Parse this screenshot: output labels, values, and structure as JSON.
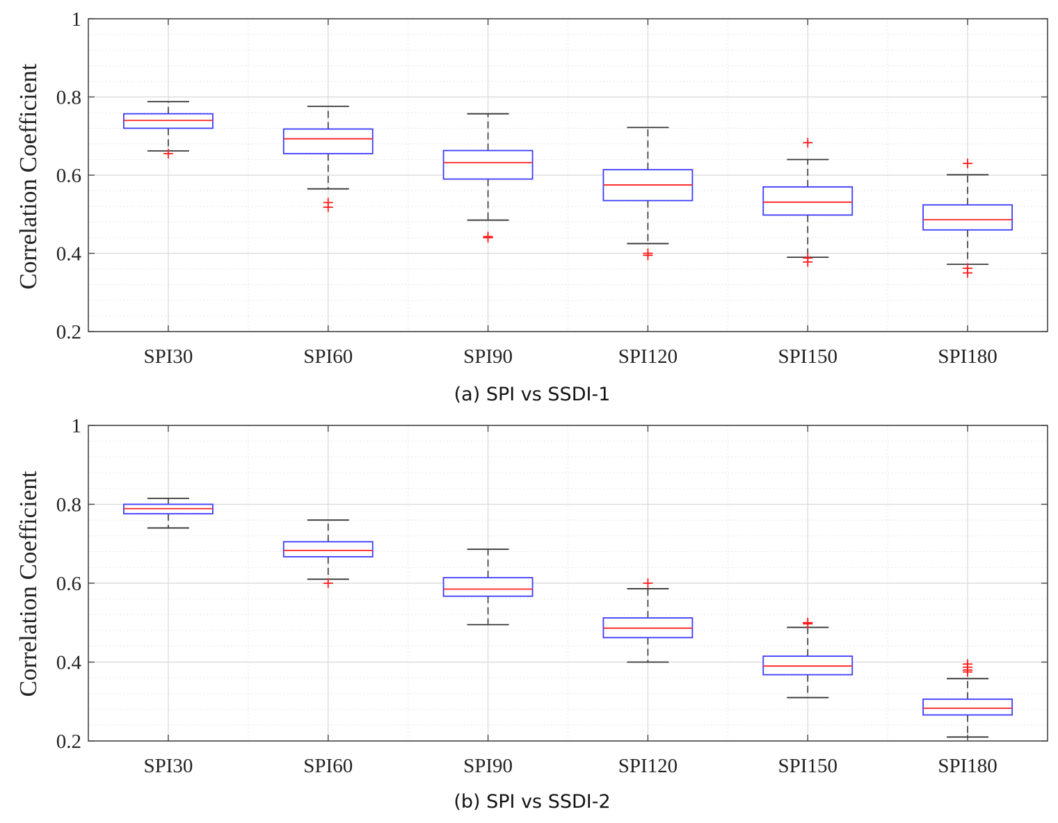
{
  "figure": {
    "captions": [
      "(a) SPI vs SSDI-1",
      "(b) SPI vs SSDI-2"
    ]
  },
  "colors": {
    "box": "#3a3aff",
    "median": "#ff2020",
    "whisker": "#333333",
    "outlier": "#ff1a1a",
    "grid": "#d8d8d8",
    "axis": "#444444"
  },
  "chart_data": [
    {
      "type": "box",
      "caption": "(a) SPI vs SSDI-1",
      "ylabel": "Correlation Coefficient",
      "xlabel": "",
      "ylim": [
        0.2,
        1
      ],
      "yticks": [
        0.2,
        0.4,
        0.6,
        0.8,
        1
      ],
      "ytick_labels": [
        "0.2",
        "0.4",
        "0.6",
        "0.8",
        "1"
      ],
      "grid": true,
      "categories": [
        "SPI30",
        "SPI60",
        "SPI90",
        "SPI120",
        "SPI150",
        "SPI180"
      ],
      "boxes": [
        {
          "category": "SPI30",
          "whisker_low": 0.662,
          "q1": 0.72,
          "median": 0.74,
          "q3": 0.757,
          "whisker_high": 0.788,
          "outliers": [
            0.655
          ]
        },
        {
          "category": "SPI60",
          "whisker_low": 0.565,
          "q1": 0.655,
          "median": 0.693,
          "q3": 0.718,
          "whisker_high": 0.776,
          "outliers": [
            0.53,
            0.518
          ]
        },
        {
          "category": "SPI90",
          "whisker_low": 0.485,
          "q1": 0.59,
          "median": 0.632,
          "q3": 0.663,
          "whisker_high": 0.757,
          "outliers": [
            0.443,
            0.44
          ]
        },
        {
          "category": "SPI120",
          "whisker_low": 0.425,
          "q1": 0.535,
          "median": 0.575,
          "q3": 0.614,
          "whisker_high": 0.722,
          "outliers": [
            0.4,
            0.395
          ]
        },
        {
          "category": "SPI150",
          "whisker_low": 0.39,
          "q1": 0.498,
          "median": 0.531,
          "q3": 0.57,
          "whisker_high": 0.64,
          "outliers": [
            0.683,
            0.388,
            0.378
          ]
        },
        {
          "category": "SPI180",
          "whisker_low": 0.372,
          "q1": 0.46,
          "median": 0.486,
          "q3": 0.524,
          "whisker_high": 0.601,
          "outliers": [
            0.63,
            0.362,
            0.35
          ]
        }
      ]
    },
    {
      "type": "box",
      "caption": "(b) SPI vs SSDI-2",
      "ylabel": "Correlation Coefficient",
      "xlabel": "",
      "ylim": [
        0.2,
        1
      ],
      "yticks": [
        0.2,
        0.4,
        0.6,
        0.8,
        1
      ],
      "ytick_labels": [
        "0.2",
        "0.4",
        "0.6",
        "0.8",
        "1"
      ],
      "grid": true,
      "categories": [
        "SPI30",
        "SPI60",
        "SPI90",
        "SPI120",
        "SPI150",
        "SPI180"
      ],
      "boxes": [
        {
          "category": "SPI30",
          "whisker_low": 0.74,
          "q1": 0.776,
          "median": 0.789,
          "q3": 0.8,
          "whisker_high": 0.815,
          "outliers": []
        },
        {
          "category": "SPI60",
          "whisker_low": 0.61,
          "q1": 0.667,
          "median": 0.683,
          "q3": 0.705,
          "whisker_high": 0.76,
          "outliers": [
            0.6
          ]
        },
        {
          "category": "SPI90",
          "whisker_low": 0.495,
          "q1": 0.567,
          "median": 0.585,
          "q3": 0.614,
          "whisker_high": 0.686,
          "outliers": []
        },
        {
          "category": "SPI120",
          "whisker_low": 0.4,
          "q1": 0.462,
          "median": 0.486,
          "q3": 0.512,
          "whisker_high": 0.586,
          "outliers": [
            0.6
          ]
        },
        {
          "category": "SPI150",
          "whisker_low": 0.31,
          "q1": 0.368,
          "median": 0.39,
          "q3": 0.415,
          "whisker_high": 0.488,
          "outliers": [
            0.5,
            0.497
          ]
        },
        {
          "category": "SPI180",
          "whisker_low": 0.21,
          "q1": 0.266,
          "median": 0.283,
          "q3": 0.306,
          "whisker_high": 0.358,
          "outliers": [
            0.395,
            0.387,
            0.38,
            0.375
          ]
        }
      ]
    }
  ]
}
